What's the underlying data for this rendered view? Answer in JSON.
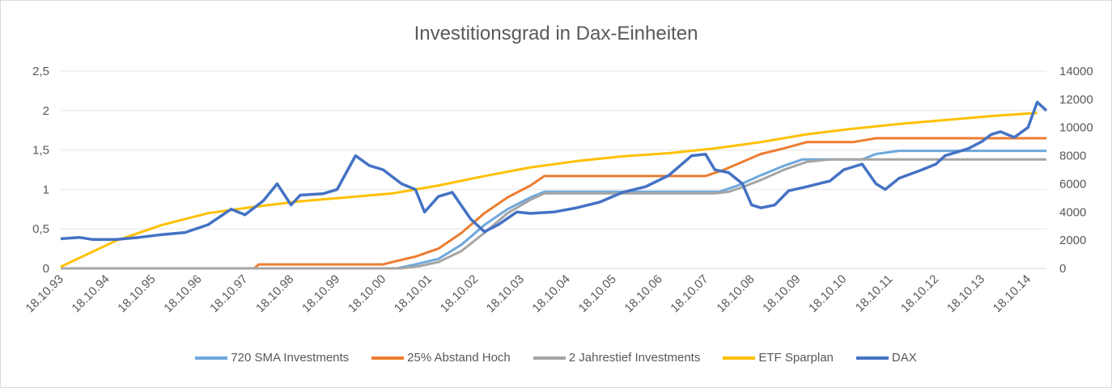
{
  "chart_data": {
    "type": "line",
    "title": "Investitionsgrad in Dax-Einheiten",
    "xlabel": "",
    "ylabel": "",
    "x_ticks": [
      "18.10.93",
      "18.10.94",
      "18.10.95",
      "18.10.96",
      "18.10.97",
      "18.10.98",
      "18.10.99",
      "18.10.00",
      "18.10.01",
      "18.10.02",
      "18.10.03",
      "18.10.04",
      "18.10.05",
      "18.10.06",
      "18.10.07",
      "18.10.08",
      "18.10.09",
      "18.10.10",
      "18.10.11",
      "18.10.12",
      "18.10.13",
      "18.10.14"
    ],
    "x_range": [
      1993.8,
      2015.2
    ],
    "y_left": {
      "ticks": [
        "0",
        "0,5",
        "1",
        "1,5",
        "2",
        "2,5"
      ],
      "ylim": [
        0,
        2.5
      ]
    },
    "y_right": {
      "ticks": [
        "0",
        "2000",
        "4000",
        "6000",
        "8000",
        "10000",
        "12000",
        "14000"
      ],
      "ylim": [
        0,
        14000
      ]
    },
    "series": [
      {
        "name": "720 SMA Investments",
        "axis": "left",
        "color": "#6fa8dc",
        "points": [
          [
            1993.8,
            0
          ],
          [
            2001.1,
            0
          ],
          [
            2001.5,
            0.05
          ],
          [
            2002.0,
            0.12
          ],
          [
            2002.5,
            0.3
          ],
          [
            2003.0,
            0.55
          ],
          [
            2003.5,
            0.75
          ],
          [
            2004.0,
            0.9
          ],
          [
            2004.3,
            0.97
          ],
          [
            2007.8,
            0.97
          ],
          [
            2008.1,
            0.97
          ],
          [
            2008.5,
            1.05
          ],
          [
            2009.0,
            1.18
          ],
          [
            2009.5,
            1.3
          ],
          [
            2009.9,
            1.38
          ],
          [
            2010.8,
            1.38
          ],
          [
            2011.2,
            1.38
          ],
          [
            2011.5,
            1.45
          ],
          [
            2012.0,
            1.49
          ],
          [
            2015.2,
            1.49
          ]
        ]
      },
      {
        "name": "25% Abstand Hoch",
        "axis": "left",
        "color": "#ed7d31",
        "points": [
          [
            1993.8,
            0
          ],
          [
            1998.0,
            0
          ],
          [
            1998.1,
            0.05
          ],
          [
            2000.8,
            0.05
          ],
          [
            2001.0,
            0.08
          ],
          [
            2001.5,
            0.15
          ],
          [
            2002.0,
            0.25
          ],
          [
            2002.5,
            0.45
          ],
          [
            2003.0,
            0.7
          ],
          [
            2003.5,
            0.9
          ],
          [
            2004.0,
            1.05
          ],
          [
            2004.3,
            1.17
          ],
          [
            2007.8,
            1.17
          ],
          [
            2008.2,
            1.25
          ],
          [
            2008.6,
            1.35
          ],
          [
            2009.0,
            1.45
          ],
          [
            2009.5,
            1.52
          ],
          [
            2010.0,
            1.6
          ],
          [
            2011.0,
            1.6
          ],
          [
            2011.5,
            1.65
          ],
          [
            2015.2,
            1.65
          ]
        ]
      },
      {
        "name": "2 Jahrestief Investments",
        "axis": "left",
        "color": "#a5a5a5",
        "points": [
          [
            1993.8,
            0
          ],
          [
            2001.2,
            0
          ],
          [
            2001.6,
            0.03
          ],
          [
            2002.0,
            0.08
          ],
          [
            2002.5,
            0.22
          ],
          [
            2003.0,
            0.45
          ],
          [
            2003.5,
            0.7
          ],
          [
            2004.0,
            0.87
          ],
          [
            2004.3,
            0.95
          ],
          [
            2008.0,
            0.95
          ],
          [
            2008.3,
            0.97
          ],
          [
            2008.6,
            1.03
          ],
          [
            2009.0,
            1.12
          ],
          [
            2009.5,
            1.25
          ],
          [
            2010.0,
            1.35
          ],
          [
            2010.5,
            1.38
          ],
          [
            2015.2,
            1.38
          ]
        ]
      },
      {
        "name": "ETF Sparplan",
        "axis": "left",
        "color": "#ffc000",
        "points": [
          [
            1993.8,
            0.02
          ],
          [
            1995.0,
            0.35
          ],
          [
            1996.0,
            0.55
          ],
          [
            1997.0,
            0.7
          ],
          [
            1998.0,
            0.78
          ],
          [
            1999.0,
            0.85
          ],
          [
            2000.0,
            0.9
          ],
          [
            2001.0,
            0.95
          ],
          [
            2002.0,
            1.05
          ],
          [
            2003.0,
            1.17
          ],
          [
            2004.0,
            1.28
          ],
          [
            2005.0,
            1.36
          ],
          [
            2006.0,
            1.42
          ],
          [
            2007.0,
            1.46
          ],
          [
            2008.0,
            1.52
          ],
          [
            2009.0,
            1.6
          ],
          [
            2010.0,
            1.7
          ],
          [
            2011.0,
            1.77
          ],
          [
            2012.0,
            1.83
          ],
          [
            2013.0,
            1.88
          ],
          [
            2014.0,
            1.93
          ],
          [
            2015.0,
            1.97
          ]
        ]
      },
      {
        "name": "DAX",
        "axis": "right",
        "color": "#4472c4",
        "points": [
          [
            1993.8,
            2100
          ],
          [
            1994.2,
            2200
          ],
          [
            1994.5,
            2050
          ],
          [
            1995.0,
            2050
          ],
          [
            1995.5,
            2200
          ],
          [
            1996.0,
            2400
          ],
          [
            1996.5,
            2550
          ],
          [
            1997.0,
            3100
          ],
          [
            1997.5,
            4200
          ],
          [
            1997.8,
            3800
          ],
          [
            1998.2,
            4800
          ],
          [
            1998.5,
            6000
          ],
          [
            1998.8,
            4500
          ],
          [
            1999.0,
            5200
          ],
          [
            1999.5,
            5300
          ],
          [
            1999.8,
            5600
          ],
          [
            2000.2,
            8000
          ],
          [
            2000.5,
            7300
          ],
          [
            2000.8,
            7000
          ],
          [
            2001.2,
            6000
          ],
          [
            2001.5,
            5600
          ],
          [
            2001.7,
            4000
          ],
          [
            2002.0,
            5100
          ],
          [
            2002.3,
            5400
          ],
          [
            2002.7,
            3500
          ],
          [
            2003.0,
            2600
          ],
          [
            2003.3,
            3100
          ],
          [
            2003.7,
            4000
          ],
          [
            2004.0,
            3900
          ],
          [
            2004.5,
            4000
          ],
          [
            2005.0,
            4300
          ],
          [
            2005.5,
            4700
          ],
          [
            2006.0,
            5400
          ],
          [
            2006.5,
            5800
          ],
          [
            2007.0,
            6600
          ],
          [
            2007.5,
            8000
          ],
          [
            2007.8,
            8100
          ],
          [
            2008.0,
            7000
          ],
          [
            2008.3,
            6800
          ],
          [
            2008.6,
            6000
          ],
          [
            2008.8,
            4500
          ],
          [
            2009.0,
            4300
          ],
          [
            2009.3,
            4500
          ],
          [
            2009.6,
            5500
          ],
          [
            2010.0,
            5800
          ],
          [
            2010.5,
            6200
          ],
          [
            2010.8,
            7000
          ],
          [
            2011.2,
            7400
          ],
          [
            2011.5,
            6000
          ],
          [
            2011.7,
            5600
          ],
          [
            2012.0,
            6400
          ],
          [
            2012.5,
            7000
          ],
          [
            2012.8,
            7400
          ],
          [
            2013.0,
            8000
          ],
          [
            2013.5,
            8500
          ],
          [
            2013.8,
            9000
          ],
          [
            2014.0,
            9500
          ],
          [
            2014.2,
            9700
          ],
          [
            2014.5,
            9300
          ],
          [
            2014.8,
            10000
          ],
          [
            2015.0,
            11800
          ],
          [
            2015.2,
            11200
          ]
        ]
      }
    ],
    "legend": [
      "720 SMA Investments",
      "25% Abstand Hoch",
      "2 Jahrestief Investments",
      "ETF Sparplan",
      "DAX"
    ],
    "legend_position": "bottom",
    "grid": true
  }
}
